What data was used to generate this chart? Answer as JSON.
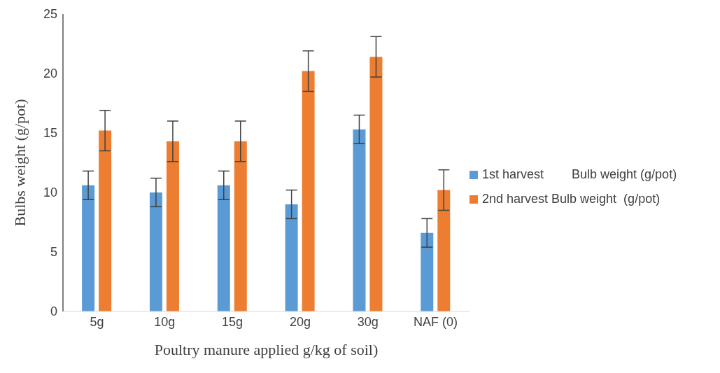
{
  "chart_data": {
    "type": "bar",
    "xlabel": "Poultry manure applied g/kg of soil)",
    "ylabel": "Bulbs weight  (g/pot)",
    "categories": [
      "5g",
      "10g",
      "15g",
      "20g",
      "30g",
      "NAF (0)"
    ],
    "ylim": [
      0,
      25
    ],
    "yticks": [
      0,
      5,
      10,
      15,
      20,
      25
    ],
    "grid": false,
    "legend": "right",
    "series": [
      {
        "name": "1st harvest        Bulb weight (g/pot)",
        "color": "#5b9bd5",
        "values": [
          10.6,
          10.0,
          10.6,
          9.0,
          15.3,
          6.6
        ],
        "errors": [
          1.2,
          1.2,
          1.2,
          1.2,
          1.2,
          1.2
        ]
      },
      {
        "name": "2nd harvest Bulb weight  (g/pot)",
        "color": "#ed7d31",
        "values": [
          15.2,
          14.3,
          14.3,
          20.2,
          21.4,
          10.2
        ],
        "errors": [
          1.7,
          1.7,
          1.7,
          1.7,
          1.7,
          1.7
        ]
      }
    ]
  }
}
